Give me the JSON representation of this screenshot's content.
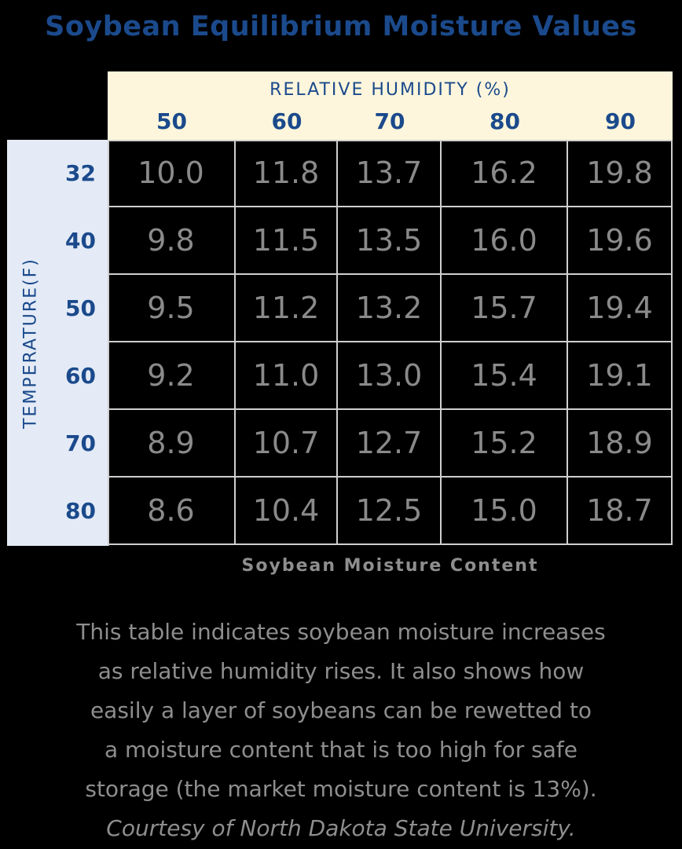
{
  "chart_data": {
    "type": "table",
    "title": "Soybean Equilibrium Moisture Values",
    "column_axis_label": "RELATIVE HUMIDITY (%)",
    "row_axis_label": "TEMPERATURE(F)",
    "columns": [
      "50",
      "60",
      "70",
      "80",
      "90"
    ],
    "rows": [
      "32",
      "40",
      "50",
      "60",
      "70",
      "80"
    ],
    "values": [
      [
        "10.0",
        "11.8",
        "13.7",
        "16.2",
        "19.8"
      ],
      [
        "9.8",
        "11.5",
        "13.5",
        "16.0",
        "19.6"
      ],
      [
        "9.5",
        "11.2",
        "13.2",
        "15.7",
        "19.4"
      ],
      [
        "9.2",
        "11.0",
        "13.0",
        "15.4",
        "19.1"
      ],
      [
        "8.9",
        "10.7",
        "12.7",
        "15.2",
        "18.9"
      ],
      [
        "8.6",
        "10.4",
        "12.5",
        "15.0",
        "18.7"
      ]
    ],
    "caption": "Soybean Moisture Content"
  },
  "note": {
    "lines": [
      "This table indicates soybean moisture increases",
      "as relative humidity rises. It also shows how",
      "easily a layer of soybeans can be rewetted to",
      "a moisture content that is too high for safe",
      "storage (the market moisture content is 13%)."
    ],
    "credit": "Courtesy of North Dakota State University."
  },
  "colors": {
    "title": "#1b4a8c",
    "column_header_band": "#fdf6dc",
    "row_header_band": "#e4ebf6",
    "cell_background": "#000000",
    "cell_text": "#8a8a8a",
    "grid_line": "#cfcfcf"
  }
}
